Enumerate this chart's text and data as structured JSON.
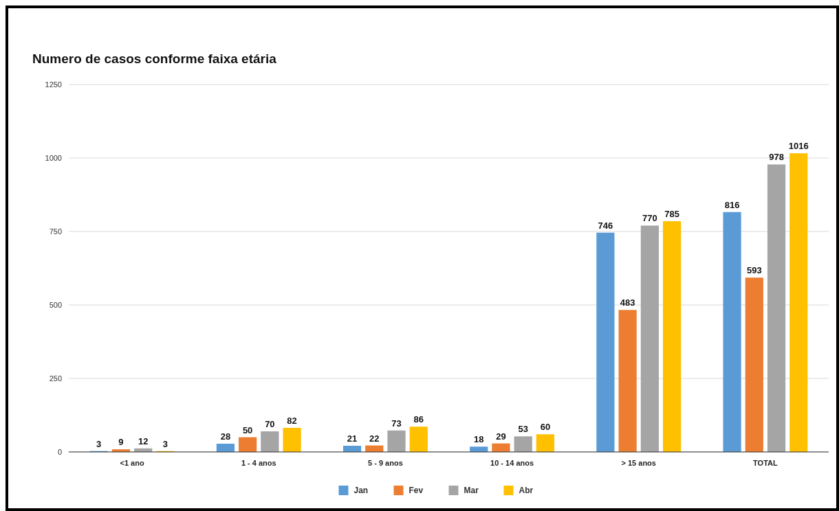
{
  "chart_data": {
    "type": "bar",
    "title": "Numero de casos conforme faixa etária",
    "categories": [
      "<1 ano",
      "1 - 4 anos",
      "5 - 9 anos",
      "10 - 14 anos",
      "> 15 anos",
      "TOTAL"
    ],
    "series": [
      {
        "name": "Jan",
        "color": "#5b9bd5",
        "values": [
          3,
          28,
          21,
          18,
          746,
          816
        ]
      },
      {
        "name": "Fev",
        "color": "#ed7d31",
        "values": [
          9,
          50,
          22,
          29,
          483,
          593
        ]
      },
      {
        "name": "Mar",
        "color": "#a5a5a5",
        "values": [
          12,
          70,
          73,
          53,
          770,
          978
        ]
      },
      {
        "name": "Abr",
        "color": "#ffc000",
        "values": [
          3,
          82,
          86,
          60,
          785,
          1016
        ]
      }
    ],
    "ylim": [
      0,
      1250
    ],
    "yticks": [
      0,
      250,
      500,
      750,
      1000,
      1250
    ],
    "grid": "y",
    "legend": "bottom",
    "data_labels": true
  }
}
